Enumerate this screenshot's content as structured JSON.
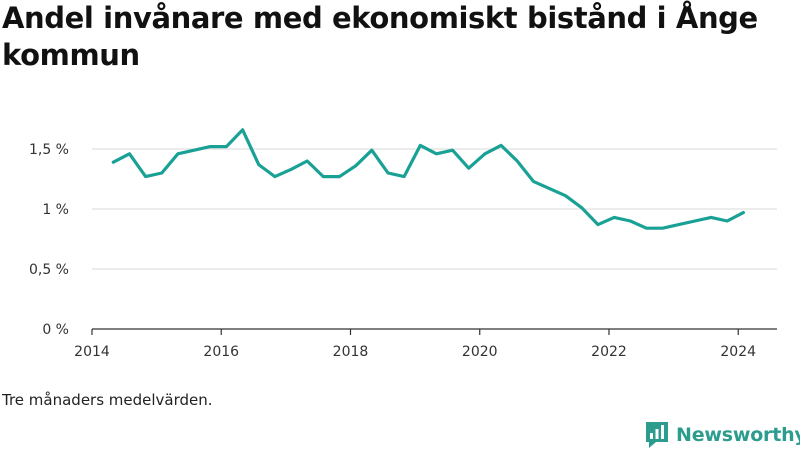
{
  "title": "Andel invånare med ekonomiskt bistånd i Ånge kommun",
  "note": "Tre månaders medelvärden.",
  "brand": {
    "name": "Newsworthy",
    "icon": "newsworthy-logo-icon",
    "color": "#2b9c8e"
  },
  "colors": {
    "line": "#1aa195",
    "grid": "#d9d9d9",
    "axis": "#333333",
    "text": "#333333"
  },
  "chart_data": {
    "type": "line",
    "title": "Andel invånare med ekonomiskt bistånd i Ånge kommun",
    "xlabel": "",
    "ylabel": "",
    "xlim": [
      2014,
      2024.6
    ],
    "ylim": [
      0,
      1.6
    ],
    "grid": true,
    "y_ticks": [
      {
        "value": 0,
        "label": "0 %"
      },
      {
        "value": 0.5,
        "label": "0,5 %"
      },
      {
        "value": 1,
        "label": "1 %"
      },
      {
        "value": 1.5,
        "label": "1,5 %"
      }
    ],
    "x_ticks": [
      {
        "value": 2014,
        "label": "2014"
      },
      {
        "value": 2016,
        "label": "2016"
      },
      {
        "value": 2018,
        "label": "2018"
      },
      {
        "value": 2020,
        "label": "2020"
      },
      {
        "value": 2022,
        "label": "2022"
      },
      {
        "value": 2024,
        "label": "2024"
      }
    ],
    "series": [
      {
        "x": [
          2014.33,
          2014.58,
          2014.83,
          2015.08,
          2015.33,
          2015.58,
          2015.83,
          2016.08,
          2016.33,
          2016.58,
          2016.83,
          2017.08,
          2017.33,
          2017.58,
          2017.83,
          2018.08,
          2018.33,
          2018.58,
          2018.83,
          2019.08,
          2019.33,
          2019.58,
          2019.83,
          2020.08,
          2020.33,
          2020.58,
          2020.83,
          2021.08,
          2021.33,
          2021.58,
          2021.83,
          2022.08,
          2022.33,
          2022.58,
          2022.83,
          2023.08,
          2023.33,
          2023.58,
          2023.83,
          2024.08
        ],
        "y": [
          1.39,
          1.46,
          1.27,
          1.3,
          1.46,
          1.49,
          1.52,
          1.52,
          1.66,
          1.37,
          1.27,
          1.33,
          1.4,
          1.27,
          1.27,
          1.36,
          1.49,
          1.3,
          1.27,
          1.53,
          1.46,
          1.49,
          1.34,
          1.46,
          1.53,
          1.4,
          1.23,
          1.17,
          1.11,
          1.01,
          0.87,
          0.93,
          0.9,
          0.84,
          0.84,
          0.87,
          0.9,
          0.93,
          0.9,
          0.97
        ]
      }
    ]
  }
}
